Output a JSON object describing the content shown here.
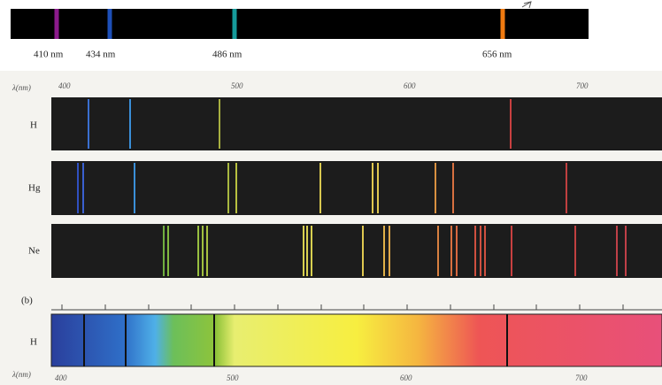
{
  "top_strip": {
    "labels": [
      "410 nm",
      "434 nm",
      "486 nm",
      "656 nm"
    ]
  },
  "panel_a": {
    "axis_label": "λ(nm)",
    "ticks": [
      "400",
      "500",
      "600",
      "700"
    ],
    "rows": [
      {
        "label": "H"
      },
      {
        "label": "Hg"
      },
      {
        "label": "Ne"
      }
    ]
  },
  "panel_b": {
    "label": "(b)",
    "row_label": "H",
    "axis_label": "λ(nm)",
    "ticks": [
      "400",
      "500",
      "600",
      "700"
    ]
  }
}
